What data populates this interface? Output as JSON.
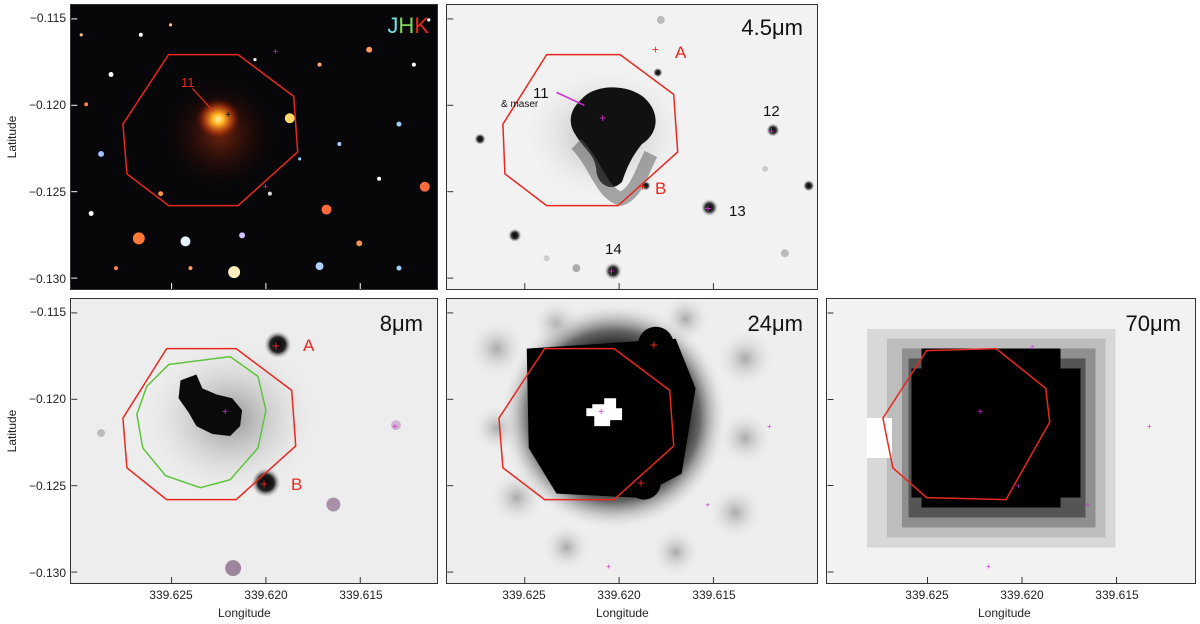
{
  "axes": {
    "ylabel": "Latitude",
    "xlabel": "Longitude",
    "yticks": [
      "−0.115",
      "−0.120",
      "−0.125",
      "−0.130"
    ],
    "xticks": [
      "339.625",
      "339.620",
      "339.615"
    ]
  },
  "panels": {
    "jhk": {
      "title_j": "J",
      "title_h": "H",
      "title_k": "K",
      "source_label": "11"
    },
    "p45": {
      "title": "4.5μm",
      "labels": [
        "A",
        "B"
      ],
      "sources": [
        "11",
        "& maser",
        "12",
        "13",
        "14"
      ]
    },
    "p8": {
      "title": "8μm",
      "labels": [
        "A",
        "B"
      ]
    },
    "p24": {
      "title": "24μm"
    },
    "p70": {
      "title": "70μm"
    }
  },
  "colors": {
    "hexagon": "#e8281e",
    "green_contour": "#5cc43a",
    "marker_magenta": "#d030d0",
    "marker_red": "#e8281e",
    "jhk_j": "#6fe0e0",
    "jhk_h": "#7ed957",
    "jhk_k": "#e8281e"
  }
}
